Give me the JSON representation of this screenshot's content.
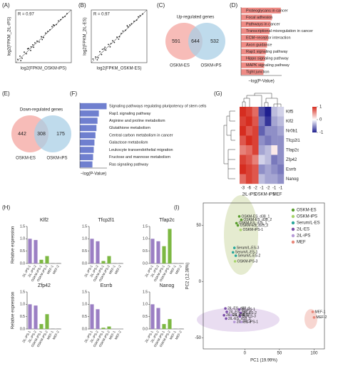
{
  "chart_data": [
    {
      "type": "scatter",
      "panel_label": "(A)",
      "annotation": "R = 0.97",
      "xlabel": "log2(FPKM_OSKM-iPS)",
      "ylabel": "log2(FPKM_2iL-iPS)",
      "xlim": [
        0,
        13
      ],
      "ylim": [
        0,
        13
      ],
      "x": [
        0.5,
        1,
        1.5,
        2,
        2.5,
        3,
        3.5,
        4,
        4.5,
        5,
        5.5,
        6,
        6.5,
        7,
        7.5,
        8,
        8.5,
        9,
        9.5,
        10,
        10.5,
        11,
        11.5,
        12,
        1.2,
        2.8,
        4.2,
        6.2,
        8.8,
        3.6
      ],
      "y": [
        0.8,
        1.6,
        1.1,
        2.6,
        2.2,
        3.5,
        3.0,
        4.4,
        4.9,
        5.3,
        5.1,
        6.4,
        6.2,
        7.3,
        7.7,
        8.1,
        8.9,
        9.2,
        9.4,
        10.3,
        10.6,
        11.2,
        11.4,
        12.1,
        0.5,
        3.4,
        3.8,
        5.7,
        9.3,
        3.9
      ]
    },
    {
      "type": "scatter",
      "panel_label": "(B)",
      "annotation": "R = 0.97",
      "xlabel": "log2(FPKM_OSKM-ES)",
      "ylabel": "log2(FPKM_2iL-ES)",
      "xlim": [
        0,
        13
      ],
      "ylim": [
        0,
        13
      ],
      "x": [
        0.4,
        1,
        1.6,
        2,
        2.4,
        3,
        3.4,
        4,
        4.6,
        5,
        5.4,
        6,
        6.6,
        7,
        7.4,
        8,
        8.6,
        9,
        9.4,
        10,
        10.6,
        11,
        11.4,
        12,
        1.4,
        2.6,
        4.4,
        6.4,
        8.4,
        3.2
      ],
      "y": [
        0.9,
        1.4,
        1.2,
        2.7,
        2.0,
        3.4,
        3.1,
        4.5,
        4.7,
        5.4,
        5.0,
        6.3,
        6.4,
        7.2,
        7.8,
        8.0,
        8.8,
        9.3,
        9.6,
        10.2,
        10.5,
        11.3,
        11.6,
        12.0,
        0.7,
        3.3,
        3.9,
        5.8,
        9.1,
        3.8
      ]
    },
    {
      "type": "venn",
      "panel_label": "(C)",
      "title": "Up-regulated genes",
      "sets": [
        {
          "name": "OSKM-ES",
          "color": "#f4a6a0"
        },
        {
          "name": "OSKM-iPS",
          "color": "#a9cfe6"
        }
      ],
      "values": [
        591,
        644,
        532
      ]
    },
    {
      "type": "bar",
      "orientation": "horizontal",
      "panel_label": "(D)",
      "xlabel": "−log(P-Value)",
      "xlim": [
        0,
        10
      ],
      "color": "#ee8a84",
      "categories": [
        "Proteoglycans in cancer",
        "Focal adhesion",
        "Pathways in cancer",
        "Transcriptional misregulation in cancer",
        "ECM−receptor interaction",
        "Axon guidance",
        "Rap1 signaling pathway",
        "Hippo signaling pathway",
        "MAPK signaling pathway",
        "Tight junction"
      ],
      "values": [
        9.8,
        7.6,
        7.3,
        7.0,
        6.7,
        6.4,
        6.1,
        5.9,
        5.7,
        5.5
      ]
    },
    {
      "type": "venn",
      "panel_label": "(E)",
      "title": "Down-regulated genes",
      "sets": [
        {
          "name": "OSKM-ES",
          "color": "#f4a6a0"
        },
        {
          "name": "OSKM-iPS",
          "color": "#a9cfe6"
        }
      ],
      "values": [
        442,
        308,
        175
      ]
    },
    {
      "type": "bar",
      "orientation": "horizontal",
      "panel_label": "(F)",
      "xlabel": "−log(P-Value)",
      "xlim": [
        0,
        8
      ],
      "color": "#6f7fcf",
      "highlight_index": 0,
      "highlight_color": "#e8251f",
      "categories": [
        "Signaling pathways regulating pluripotency of stem cells",
        "Rap1 signaling pathway",
        "Arginine and proline metabolism",
        "Glutathione metabolism",
        "Central carbon metabolism in cancer",
        "Galactose metabolism",
        "Leukocyte transendothelial migration",
        "Fructose and mannose metabolism",
        "Ras signaling pathway"
      ],
      "values": [
        7.9,
        5.6,
        5.2,
        4.9,
        4.6,
        4.3,
        4.1,
        3.9,
        3.7
      ]
    },
    {
      "type": "heatmap",
      "panel_label": "(G)",
      "rows": [
        "Klf5",
        "Klf2",
        "Nr0b1",
        "Tfcp2l1",
        "Tfap2c",
        "Zfp42",
        "Esrrb",
        "Nanog"
      ],
      "columns": [
        "-3",
        "-6",
        "-2",
        "-1",
        "-2",
        "-1",
        "-1"
      ],
      "column_groups": [
        "2iL-iPS",
        "2iL-iPS",
        "2iL-iPS",
        "OSKM-iPS",
        "OSKM-iPS",
        "MEF",
        "MEF"
      ],
      "zlim": [
        -1,
        1
      ],
      "zticks": [
        1,
        0,
        -1
      ],
      "colors": [
        "#1f1f8f",
        "#ffffff",
        "#d62d20"
      ],
      "values": [
        [
          1,
          0.9,
          0.7,
          -0.8,
          -1,
          -0.3,
          -0.2
        ],
        [
          0.9,
          1,
          0.8,
          -0.6,
          -0.9,
          -0.4,
          -0.3
        ],
        [
          1,
          0.8,
          0.9,
          -0.7,
          -0.5,
          -0.5,
          -0.4
        ],
        [
          0.8,
          1,
          0.9,
          -0.5,
          -0.6,
          -0.5,
          -0.5
        ],
        [
          0.6,
          0.7,
          0.9,
          -0.4,
          -0.3,
          0.1,
          -0.5
        ],
        [
          0.9,
          0.8,
          0.6,
          -0.2,
          -0.3,
          -0.6,
          -0.5
        ],
        [
          1,
          0.9,
          0.8,
          -0.5,
          -0.4,
          -0.5,
          -0.6
        ],
        [
          0.7,
          0.9,
          0.8,
          -0.3,
          -0.4,
          -0.4,
          -0.5
        ]
      ]
    },
    {
      "type": "bar",
      "panel_label": "(H)",
      "title": "Klf2",
      "ylabel": "Relative expression",
      "ylim": [
        0,
        1.5
      ],
      "yticks": [
        {
          "value": 0,
          "label": "0.0"
        },
        0.5,
        {
          "value": 1,
          "label": "1.0"
        },
        1.5
      ],
      "categories": [
        "2iL-iPS-1",
        "2iL-iPS-2",
        "OSKM-iPS-1",
        "OSKM-iPS-2",
        "MEF-1",
        "MEF-2"
      ],
      "colors": [
        "#9b7fc4",
        "#9b7fc4",
        "#7db843",
        "#7db843",
        "#9a9a9a",
        "#9a9a9a"
      ],
      "values": [
        1.0,
        0.95,
        0.15,
        0.3,
        0.02,
        0.02
      ]
    },
    {
      "type": "bar",
      "title": "Tfcp2l1",
      "ylim": [
        0,
        1.5
      ],
      "yticks": [
        {
          "value": 0,
          "label": "0.0"
        },
        0.5,
        {
          "value": 1,
          "label": "1.0"
        },
        1.5
      ],
      "categories": [
        "2iL-iPS-1",
        "2iL-iPS-2",
        "OSKM-iPS-1",
        "OSKM-iPS-2",
        "MEF-1",
        "MEF-2"
      ],
      "colors": [
        "#9b7fc4",
        "#9b7fc4",
        "#7db843",
        "#7db843",
        "#9a9a9a",
        "#9a9a9a"
      ],
      "values": [
        1.0,
        0.9,
        0.1,
        0.3,
        0.02,
        0.02
      ]
    },
    {
      "type": "bar",
      "title": "Tfap2c",
      "ylim": [
        0,
        1.5
      ],
      "yticks": [
        {
          "value": 0,
          "label": "0.0"
        },
        0.5,
        {
          "value": 1,
          "label": "1.0"
        },
        1.5
      ],
      "categories": [
        "2iL-iPS-1",
        "2iL-iPS-2",
        "OSKM-iPS-1",
        "OSKM-iPS-2",
        "MEF-1",
        "MEF-2"
      ],
      "colors": [
        "#9b7fc4",
        "#9b7fc4",
        "#7db843",
        "#7db843",
        "#9a9a9a",
        "#9a9a9a"
      ],
      "values": [
        1.0,
        0.9,
        0.7,
        1.4,
        0.02,
        0.02
      ]
    },
    {
      "type": "bar",
      "title": "Zfp42",
      "ylabel": "Relative expression",
      "ylim": [
        0,
        1.5
      ],
      "yticks": [
        {
          "value": 0,
          "label": "0.0"
        },
        0.5,
        {
          "value": 1,
          "label": "1.0"
        },
        1.5
      ],
      "categories": [
        "2iL-iPS-1",
        "2iL-iPS-2",
        "OSKM-iPS-1",
        "OSKM-iPS-2",
        "MEF-1",
        "MEF-2"
      ],
      "colors": [
        "#9b7fc4",
        "#9b7fc4",
        "#7db843",
        "#7db843",
        "#9a9a9a",
        "#9a9a9a"
      ],
      "values": [
        1.0,
        0.95,
        0.2,
        0.6,
        0.02,
        0.02
      ]
    },
    {
      "type": "bar",
      "title": "Esrrb",
      "ylim": [
        0,
        1.5
      ],
      "yticks": [
        {
          "value": 0,
          "label": "0.0"
        },
        0.5,
        {
          "value": 1,
          "label": "1.0"
        },
        1.5
      ],
      "categories": [
        "2iL-iPS-1",
        "2iL-iPS-2",
        "OSKM-iPS-1",
        "OSKM-iPS-2",
        "MEF-1",
        "MEF-2"
      ],
      "colors": [
        "#9b7fc4",
        "#9b7fc4",
        "#7db843",
        "#7db843",
        "#9a9a9a",
        "#9a9a9a"
      ],
      "values": [
        1.0,
        0.8,
        0.05,
        0.1,
        0.01,
        0.01
      ]
    },
    {
      "type": "bar",
      "title": "Nanog",
      "ylim": [
        0,
        1.5
      ],
      "yticks": [
        {
          "value": 0,
          "label": "0.0"
        },
        0.5,
        {
          "value": 1,
          "label": "1.0"
        },
        1.5
      ],
      "categories": [
        "2iL-iPS-1",
        "2iL-iPS-2",
        "OSKM-iPS-1",
        "OSKM-iPS-2",
        "MEF-1",
        "MEF-2"
      ],
      "colors": [
        "#9b7fc4",
        "#9b7fc4",
        "#7db843",
        "#7db843",
        "#9a9a9a",
        "#9a9a9a"
      ],
      "values": [
        1.0,
        0.85,
        0.2,
        0.4,
        0.02,
        0.02
      ]
    },
    {
      "type": "scatter",
      "panel_label": "(I)",
      "xlabel": "PC1 (19.99%)",
      "ylabel": "PC2 (12.38%)",
      "xlim": [
        -60,
        115
      ],
      "ylim": [
        -60,
        70
      ],
      "xticks": [
        0,
        50,
        100
      ],
      "yticks": [
        -50,
        0,
        50
      ],
      "legend": "upper right",
      "series": [
        {
          "name": "OSKM-ES",
          "color": "#5a9e2f",
          "x": [
            -8,
            -5,
            -12,
            -10
          ],
          "y": [
            58,
            55,
            52,
            50
          ],
          "labels": [
            "OSKM-ES_d38_1",
            "OSKM-ES_d38_2",
            "OSKM-ES_d25_1",
            "OSKM-ES_d25_2"
          ]
        },
        {
          "name": "OSKM-iPS",
          "color": "#a6d46a",
          "x": [
            -6,
            -14
          ],
          "y": [
            46,
            18
          ],
          "labels": [
            "OSKM-iPS-1",
            "OSKM-iPS-3"
          ]
        },
        {
          "name": "Serum/L-ES",
          "color": "#2aa79b",
          "x": [
            -15,
            -17,
            -13
          ],
          "y": [
            30,
            26,
            23
          ],
          "labels": [
            "Serum/L-ES-3",
            "Serum/L-ES-1",
            "Serum/L-ES-2"
          ]
        },
        {
          "name": "2iL-ES",
          "color": "#7b4fa8",
          "x": [
            -28,
            -26,
            -30,
            -27,
            -8,
            -6,
            -7
          ],
          "y": [
            -24,
            -27,
            -30,
            -33,
            -25,
            -28,
            -31
          ],
          "labels": [
            "2iL-ES_d38_1",
            "2iL-ES_d38_2",
            "2iL-ES_d18_1",
            "2iL-ES_d18_2",
            "2iL-ES-1",
            "2iL-ES-2",
            "2iL-ES-3"
          ]
        },
        {
          "name": "2iL-iPS",
          "color": "#b79ad8",
          "x": [
            -20,
            -15,
            -5
          ],
          "y": [
            -30,
            -36,
            -36
          ],
          "labels": [
            "2iL-iPS-6",
            "2iL-iPS-3",
            "2iL-iPS-1"
          ]
        },
        {
          "name": "MEF",
          "color": "#e8877a",
          "x": [
            98,
            100
          ],
          "y": [
            -27,
            -32
          ],
          "labels": [
            "MEF-1",
            "MEF-2"
          ]
        }
      ]
    }
  ]
}
